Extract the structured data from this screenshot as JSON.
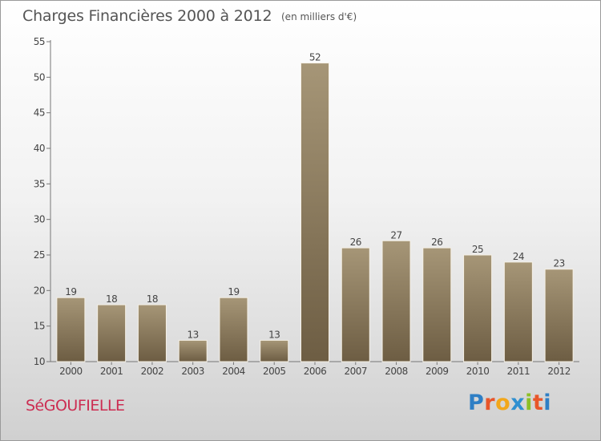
{
  "title": "Charges Financières 2000 à 2012",
  "subtitle": "(en milliers d'€)",
  "commune": "SéGOUFIELLE",
  "logo": {
    "text": "Proxiti",
    "letter_colors": [
      "#2f7fc5",
      "#e8562a",
      "#f2a71b",
      "#2e8fd0",
      "#8cbf26",
      "#e8562a",
      "#2f7fc5"
    ]
  },
  "colors": {
    "bar_top": "#a69677",
    "bar_bottom": "#6d5d43",
    "axis": "#777777",
    "grid_tick": "#777777",
    "text": "#444444",
    "commune": "#cc2d52"
  },
  "chart_data": {
    "type": "bar",
    "categories": [
      "2000",
      "2001",
      "2002",
      "2003",
      "2004",
      "2005",
      "2006",
      "2007",
      "2008",
      "2009",
      "2010",
      "2011",
      "2012"
    ],
    "values": [
      19,
      18,
      18,
      13,
      19,
      13,
      52,
      26,
      27,
      26,
      25,
      24,
      23
    ],
    "ylim": [
      10,
      55
    ],
    "yticks": [
      10,
      15,
      20,
      25,
      30,
      35,
      40,
      45,
      50,
      55
    ],
    "title": "Charges Financières 2000 à 2012",
    "subtitle": "(en milliers d'€)",
    "xlabel": "",
    "ylabel": "",
    "grid": false,
    "data_labels": true
  }
}
